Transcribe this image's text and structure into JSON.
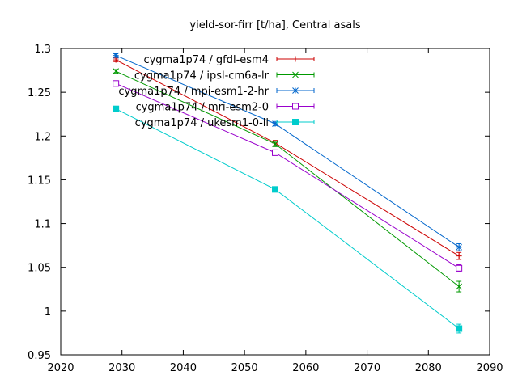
{
  "chart_data": {
    "type": "line",
    "title": "yield-sor-firr [t/ha], Central asals",
    "xlabel": "",
    "ylabel": "",
    "xlim": [
      2020,
      2090
    ],
    "ylim": [
      0.95,
      1.3
    ],
    "xticks": [
      2020,
      2030,
      2040,
      2050,
      2060,
      2070,
      2080,
      2090
    ],
    "yticks": [
      0.95,
      1,
      1.05,
      1.1,
      1.15,
      1.2,
      1.25,
      1.3
    ],
    "grid": false,
    "legend_position": "top-right",
    "series": [
      {
        "name": "cygma1p74 / gfdl-esm4",
        "color": "#cc0000",
        "marker": "plus",
        "x": [
          2029,
          2055,
          2085
        ],
        "y": [
          1.287,
          1.192,
          1.063
        ],
        "err": [
          0.002,
          0.003,
          0.004
        ]
      },
      {
        "name": "cygma1p74 / ipsl-cm6a-lr",
        "color": "#009900",
        "marker": "cross",
        "x": [
          2029,
          2055,
          2085
        ],
        "y": [
          1.274,
          1.191,
          1.028
        ],
        "err": [
          0.002,
          0.003,
          0.006
        ]
      },
      {
        "name": "cygma1p74 / mpi-esm1-2-hr",
        "color": "#0066cc",
        "marker": "star",
        "x": [
          2029,
          2055,
          2085
        ],
        "y": [
          1.292,
          1.214,
          1.073
        ],
        "err": [
          0.002,
          0.002,
          0.004
        ]
      },
      {
        "name": "cygma1p74 / mri-esm2-0",
        "color": "#9900cc",
        "marker": "square-open",
        "x": [
          2029,
          2055,
          2085
        ],
        "y": [
          1.26,
          1.181,
          1.049
        ],
        "err": [
          0.002,
          0.003,
          0.004
        ]
      },
      {
        "name": "cygma1p74 / ukesm1-0-ll",
        "color": "#00cccc",
        "marker": "square-filled",
        "x": [
          2029,
          2055,
          2085
        ],
        "y": [
          1.231,
          1.139,
          0.98
        ],
        "err": [
          0.003,
          0.002,
          0.005
        ]
      }
    ]
  }
}
